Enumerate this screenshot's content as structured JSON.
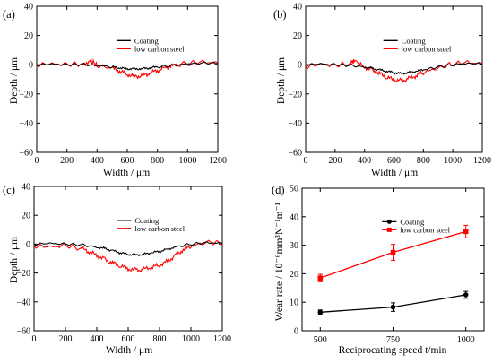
{
  "colors": {
    "coating": "#000000",
    "steel": "#ff0000"
  },
  "chart_data": [
    {
      "id": "a",
      "panel_label": "(a)",
      "type": "line",
      "xlabel": "Width / μm",
      "ylabel": "Depth / μm",
      "xlim": [
        0,
        1200
      ],
      "ylim": [
        -60,
        40
      ],
      "xticks": [
        "0",
        "200",
        "400",
        "600",
        "800",
        "1000",
        "1200"
      ],
      "yticks": [
        "40",
        "20",
        "0",
        "−20",
        "−40",
        "−60"
      ],
      "legend": [
        "Coating",
        "low carbon steel"
      ],
      "legend_position": "top-center",
      "series": [
        {
          "name": "Coating",
          "color": "#000000",
          "x": [
            0,
            100,
            200,
            300,
            400,
            500,
            550,
            600,
            650,
            700,
            750,
            800,
            900,
            1000,
            1100,
            1200
          ],
          "y": [
            0,
            0.3,
            0,
            0.2,
            -0.5,
            -1.5,
            -2.3,
            -2.8,
            -2.9,
            -2.7,
            -2.2,
            -1.5,
            -0.6,
            0.6,
            1.2,
            1.0
          ]
        },
        {
          "name": "low carbon steel",
          "color": "#ff0000",
          "x": [
            0,
            100,
            200,
            300,
            360,
            400,
            500,
            550,
            600,
            650,
            700,
            750,
            800,
            850,
            900,
            1000,
            1100,
            1200
          ],
          "y": [
            0,
            0.5,
            0,
            0.6,
            2.5,
            -0.5,
            -2.5,
            -4.5,
            -6.5,
            -8.0,
            -7.5,
            -6.0,
            -4.0,
            -2.0,
            -0.5,
            0.8,
            1.8,
            1.0
          ]
        }
      ]
    },
    {
      "id": "b",
      "panel_label": "(b)",
      "type": "line",
      "xlabel": "Width / μm",
      "ylabel": "Depth / μm",
      "xlim": [
        0,
        1200
      ],
      "ylim": [
        -60,
        40
      ],
      "xticks": [
        "0",
        "200",
        "400",
        "600",
        "800",
        "1000",
        "1200"
      ],
      "yticks": [
        "40",
        "20",
        "0",
        "−20",
        "−40",
        "−60"
      ],
      "legend": [
        "Coating",
        "low carbon steel"
      ],
      "legend_position": "top-center",
      "series": [
        {
          "name": "Coating",
          "color": "#000000",
          "x": [
            0,
            100,
            200,
            300,
            400,
            450,
            500,
            550,
            600,
            650,
            700,
            750,
            800,
            900,
            1000,
            1100,
            1200
          ],
          "y": [
            0,
            0.5,
            0,
            -0.5,
            -1.5,
            -2.5,
            -3.5,
            -4.5,
            -5.5,
            -6.0,
            -5.5,
            -4.5,
            -3.5,
            -1.5,
            0,
            1.0,
            0.5
          ]
        },
        {
          "name": "low carbon steel",
          "color": "#ff0000",
          "x": [
            0,
            100,
            200,
            300,
            330,
            400,
            450,
            500,
            550,
            600,
            650,
            700,
            750,
            800,
            900,
            1000,
            1100,
            1200
          ],
          "y": [
            -1.0,
            0,
            -0.5,
            0.5,
            3.0,
            -1.5,
            -3.5,
            -6.0,
            -8.5,
            -10.5,
            -11.0,
            -9.5,
            -7.5,
            -5.5,
            -2.0,
            0.5,
            1.5,
            0.5
          ]
        }
      ]
    },
    {
      "id": "c",
      "panel_label": "(c)",
      "type": "line",
      "xlabel": "Width / μm",
      "ylabel": "Depth / μm",
      "xlim": [
        0,
        1200
      ],
      "ylim": [
        -60,
        40
      ],
      "xticks": [
        "0",
        "200",
        "400",
        "600",
        "800",
        "1000",
        "1200"
      ],
      "yticks": [
        "40",
        "20",
        "0",
        "−20",
        "−40",
        "−60"
      ],
      "legend": [
        "Coating",
        "low carbon steel"
      ],
      "legend_position": "top-center",
      "series": [
        {
          "name": "Coating",
          "color": "#000000",
          "x": [
            0,
            100,
            200,
            300,
            400,
            450,
            500,
            550,
            600,
            650,
            700,
            750,
            800,
            850,
            900,
            1000,
            1100,
            1200
          ],
          "y": [
            0,
            0.5,
            0,
            -0.5,
            -2.0,
            -3.0,
            -4.5,
            -6.0,
            -7.0,
            -7.5,
            -7.0,
            -6.0,
            -5.0,
            -3.5,
            -2.0,
            0,
            1.0,
            0.5
          ]
        },
        {
          "name": "low carbon steel",
          "color": "#ff0000",
          "x": [
            0,
            100,
            200,
            300,
            350,
            400,
            450,
            500,
            550,
            600,
            650,
            700,
            750,
            800,
            850,
            900,
            950,
            1000,
            1100,
            1200
          ],
          "y": [
            -1.0,
            -2.0,
            -1.0,
            -3.0,
            -5.0,
            -8.0,
            -10.5,
            -13.0,
            -15.0,
            -17.0,
            -18.0,
            -17.5,
            -16.0,
            -14.5,
            -12.0,
            -8.0,
            -4.0,
            -1.5,
            1.5,
            0.5
          ]
        }
      ]
    },
    {
      "id": "d",
      "panel_label": "(d)",
      "type": "line",
      "xlabel": "Reciprocating speed t/min",
      "ylabel": "Wear rate / 10⁻⁶mm³N⁻¹m⁻¹",
      "categories": [
        "500",
        "750",
        "1000"
      ],
      "ylim": [
        0,
        50
      ],
      "yticks": [
        "50",
        "40",
        "30",
        "20",
        "10",
        "0"
      ],
      "legend": [
        "Coating",
        "low carbon steel"
      ],
      "legend_position": "top-center",
      "series": [
        {
          "name": "Coating",
          "color": "#000000",
          "marker": "circle",
          "values": [
            6.5,
            8.3,
            12.6
          ],
          "errors": [
            0.8,
            1.5,
            1.2
          ]
        },
        {
          "name": "low carbon steel",
          "color": "#ff0000",
          "marker": "square",
          "values": [
            18.5,
            27.5,
            34.8
          ],
          "errors": [
            1.3,
            2.8,
            2.2
          ]
        }
      ]
    }
  ]
}
